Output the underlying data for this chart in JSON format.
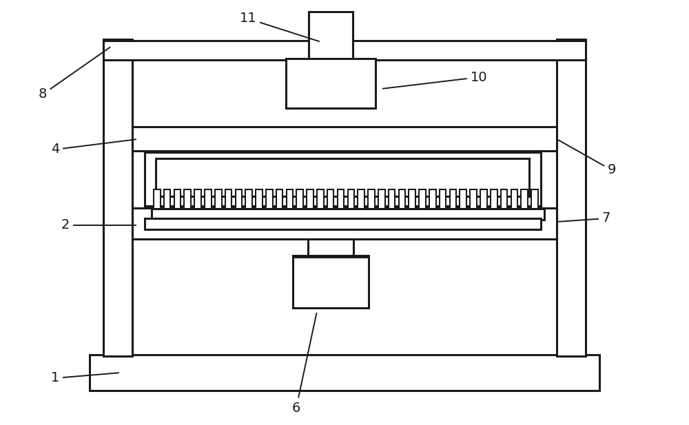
{
  "bg_color": "#ffffff",
  "line_color": "#1a1a1a",
  "lw": 2.2,
  "lw_thin": 1.5,
  "fig_width": 10.0,
  "fig_height": 6.17
}
